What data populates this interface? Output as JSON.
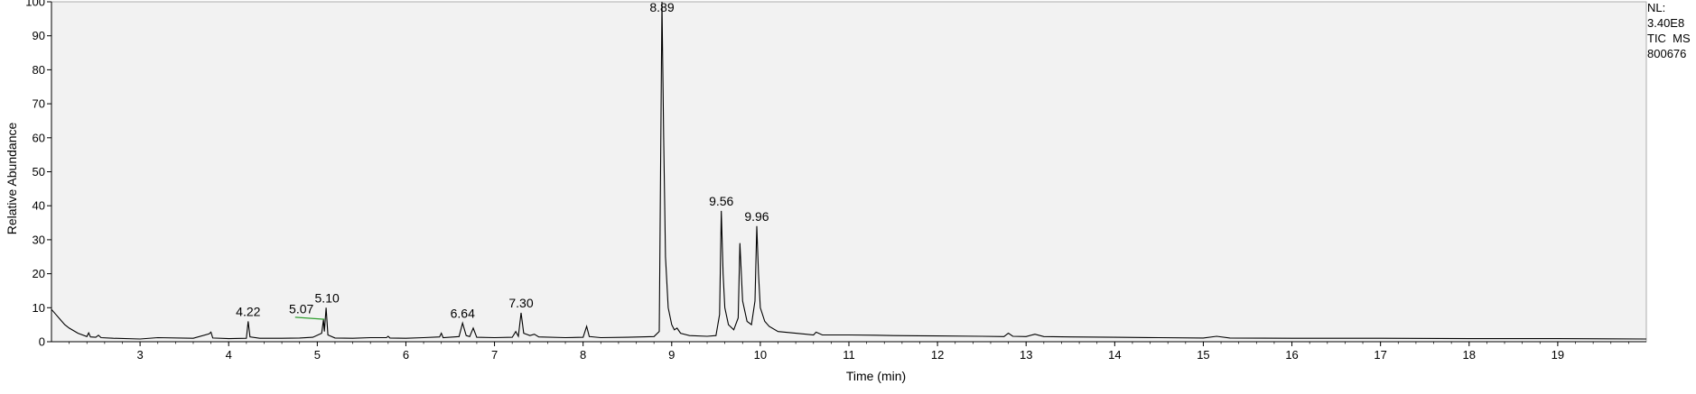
{
  "info": {
    "line1": "NL:",
    "line2": "3.40E8",
    "line3": "TIC  MS",
    "line4": "800676"
  },
  "chart_data": {
    "type": "line",
    "title": "",
    "xlabel": "Time (min)",
    "ylabel": "Relative Abundance",
    "xlim": [
      2.0,
      20.0
    ],
    "ylim": [
      0,
      100
    ],
    "x_ticks": [
      3,
      4,
      5,
      6,
      7,
      8,
      9,
      10,
      11,
      12,
      13,
      14,
      15,
      16,
      17,
      18,
      19
    ],
    "y_ticks": [
      0,
      10,
      20,
      30,
      40,
      50,
      60,
      70,
      80,
      90,
      100
    ],
    "grid": false,
    "background": "#f2f2f2",
    "line_color": "#000000",
    "annotation_line_color": "#2e9e2e",
    "peak_labels": [
      {
        "x": 4.22,
        "y": 6.0,
        "label": "4.22"
      },
      {
        "x": 5.07,
        "y": 6.8,
        "label": "5.07"
      },
      {
        "x": 5.1,
        "y": 10.0,
        "label": "5.10"
      },
      {
        "x": 6.64,
        "y": 5.5,
        "label": "6.64"
      },
      {
        "x": 7.3,
        "y": 8.5,
        "label": "7.30"
      },
      {
        "x": 8.89,
        "y": 100.0,
        "label": "8.89"
      },
      {
        "x": 9.56,
        "y": 38.5,
        "label": "9.56"
      },
      {
        "x": 9.96,
        "y": 34.0,
        "label": "9.96"
      }
    ],
    "series": [
      {
        "x": [
          2.0,
          2.05,
          2.1,
          2.15,
          2.2,
          2.3,
          2.4,
          2.42,
          2.44,
          2.5,
          2.53,
          2.56,
          2.7,
          3.0,
          3.2,
          3.6,
          3.78,
          3.8,
          3.82,
          4.0,
          4.2,
          4.22,
          4.24,
          4.35,
          4.6,
          4.8,
          4.95,
          5.05,
          5.07,
          5.08,
          5.1,
          5.12,
          5.2,
          5.4,
          5.6,
          5.78,
          5.8,
          5.82,
          6.0,
          6.2,
          6.38,
          6.4,
          6.42,
          6.6,
          6.64,
          6.68,
          6.72,
          6.76,
          6.8,
          7.0,
          7.2,
          7.24,
          7.27,
          7.3,
          7.33,
          7.4,
          7.45,
          7.5,
          7.8,
          8.0,
          8.04,
          8.07,
          8.2,
          8.5,
          8.8,
          8.86,
          8.89,
          8.91,
          8.93,
          8.96,
          9.0,
          9.03,
          9.06,
          9.1,
          9.2,
          9.4,
          9.5,
          9.54,
          9.56,
          9.58,
          9.6,
          9.64,
          9.7,
          9.75,
          9.77,
          9.8,
          9.85,
          9.9,
          9.94,
          9.96,
          9.98,
          10.0,
          10.05,
          10.1,
          10.2,
          10.4,
          10.6,
          10.63,
          10.7,
          11.0,
          11.3,
          11.5,
          12.0,
          12.5,
          12.75,
          12.8,
          12.85,
          13.0,
          13.1,
          13.2,
          13.5,
          14.0,
          14.5,
          15.0,
          15.15,
          15.3,
          16.0,
          17.0,
          18.0,
          19.0,
          20.0
        ],
        "y": [
          9.5,
          8.0,
          6.5,
          5.0,
          4.0,
          2.5,
          1.5,
          2.6,
          1.4,
          1.3,
          1.9,
          1.2,
          1.0,
          0.8,
          1.2,
          1.0,
          2.3,
          2.8,
          1.1,
          0.9,
          1.0,
          6.0,
          1.4,
          1.0,
          1.0,
          1.1,
          1.3,
          2.5,
          6.5,
          3.0,
          10.0,
          2.0,
          1.1,
          1.0,
          1.2,
          1.2,
          1.6,
          1.1,
          1.0,
          1.2,
          1.4,
          2.5,
          1.2,
          1.5,
          5.5,
          1.8,
          1.5,
          4.0,
          1.3,
          1.2,
          1.3,
          3.0,
          1.6,
          8.5,
          2.5,
          1.8,
          2.2,
          1.4,
          1.2,
          1.3,
          4.5,
          1.5,
          1.2,
          1.3,
          1.5,
          3.0,
          100.0,
          60.0,
          25.0,
          10.0,
          5.0,
          3.5,
          4.0,
          2.5,
          1.8,
          1.6,
          1.8,
          8.0,
          38.5,
          20.0,
          10.0,
          5.0,
          3.5,
          7.0,
          29.0,
          12.0,
          6.0,
          5.0,
          12.0,
          34.0,
          20.0,
          10.0,
          6.0,
          4.5,
          3.0,
          2.5,
          2.0,
          2.8,
          2.0,
          2.0,
          1.9,
          1.8,
          1.7,
          1.6,
          1.5,
          2.5,
          1.6,
          1.5,
          2.2,
          1.5,
          1.4,
          1.3,
          1.2,
          1.1,
          1.6,
          1.1,
          1.0,
          1.0,
          0.9,
          0.9,
          0.8
        ]
      }
    ]
  }
}
